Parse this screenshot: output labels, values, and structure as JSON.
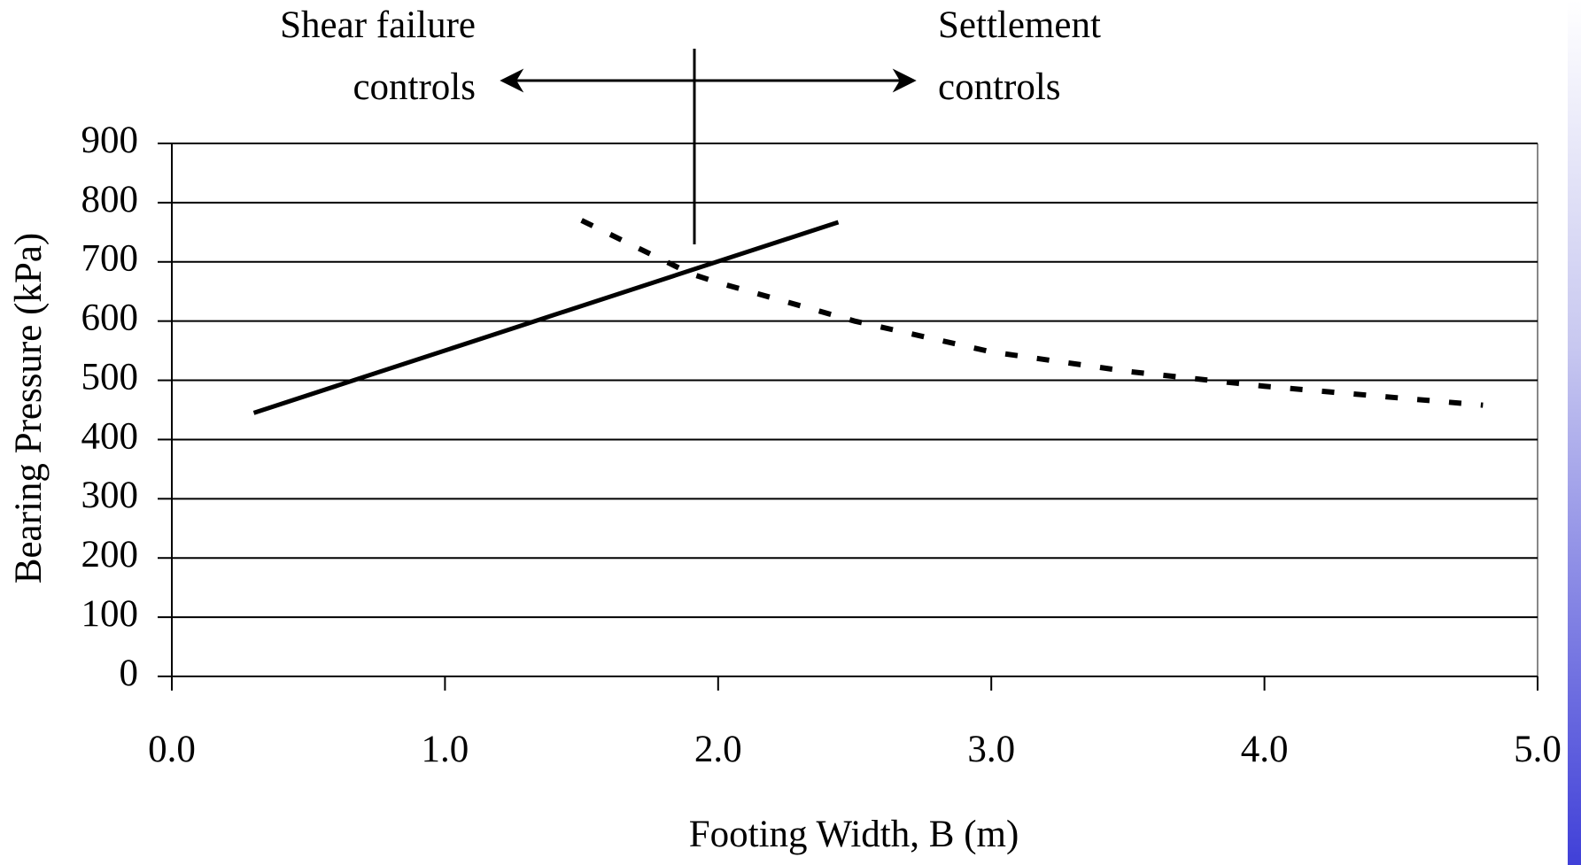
{
  "chart_data": {
    "type": "line",
    "x_label": "Footing Width, B (m)",
    "y_label": "Bearing Pressure (kPa)",
    "annotations": [
      [
        "Shear failure",
        "controls"
      ],
      [
        "Settlement",
        "controls"
      ]
    ],
    "series": [
      {
        "color": "#000000",
        "dashed": false,
        "x": [
          0.3,
          2.44
        ],
        "values": [
          445,
          767
        ]
      },
      {
        "color": "#000000",
        "dashed": true,
        "x": [
          1.5,
          1.9,
          2.0,
          2.5,
          3.0,
          3.5,
          3.8,
          4.0,
          4.5,
          4.8
        ],
        "values": [
          770,
          680,
          665,
          600,
          548,
          515,
          500,
          490,
          470,
          458
        ]
      }
    ],
    "xlim": [
      0,
      5
    ],
    "xticks": [
      {
        "value": 0,
        "label": "0.0"
      },
      {
        "value": 1,
        "label": "1.0"
      },
      {
        "value": 2,
        "label": "2.0"
      },
      {
        "value": 3,
        "label": "3.0"
      },
      {
        "value": 4,
        "label": "4.0"
      },
      {
        "value": 5,
        "label": "5.0"
      }
    ],
    "ylim": [
      0,
      900
    ],
    "yticks": [
      0,
      100,
      200,
      300,
      400,
      500,
      600,
      700,
      800,
      900
    ],
    "grid": true
  }
}
